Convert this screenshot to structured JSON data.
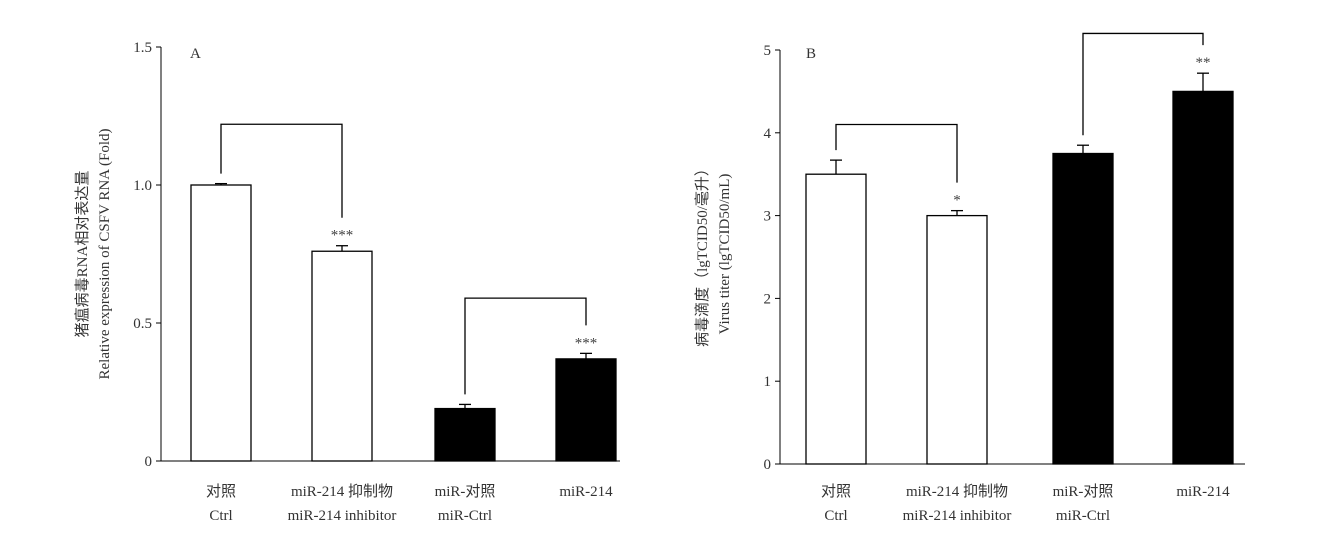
{
  "chart_data": [
    {
      "type": "bar",
      "panel_label": "A",
      "ylabel_cn": "猪瘟病毒RNA相对表达量",
      "ylabel_en": "Relative expression of CSFV RNA (Fold)",
      "ylim": [
        0,
        1.5
      ],
      "yticks": [
        0,
        0.5,
        1.0,
        1.5
      ],
      "ytick_labels": [
        "0",
        "0.5",
        "1.0",
        "1.5"
      ],
      "categories_cn": [
        "对照",
        "miR-214 抑制物",
        "miR-对照",
        "miR-214"
      ],
      "categories_en": [
        "Ctrl",
        "miR-214 inhibitor",
        "miR-Ctrl",
        ""
      ],
      "values": [
        1.0,
        0.76,
        0.19,
        0.37
      ],
      "errors": [
        0.005,
        0.02,
        0.015,
        0.02
      ],
      "fill": [
        "#ffffff",
        "#ffffff",
        "#000000",
        "#000000"
      ],
      "significance": [
        "",
        "***",
        "",
        "***"
      ],
      "comparisons": [
        {
          "from": 0,
          "to": 1,
          "level": 1.22
        },
        {
          "from": 2,
          "to": 3,
          "level": 0.59
        }
      ]
    },
    {
      "type": "bar",
      "panel_label": "B",
      "ylabel_cn": "病毒滴度（lgTCID50/毫升）",
      "ylabel_en": "Virus titer (lgTCID50/mL)",
      "ylim": [
        0,
        5
      ],
      "yticks": [
        0,
        1,
        2,
        3,
        4,
        5
      ],
      "ytick_labels": [
        "0",
        "1",
        "2",
        "3",
        "4",
        "5"
      ],
      "categories_cn": [
        "对照",
        "miR-214 抑制物",
        "miR-对照",
        "miR-214"
      ],
      "categories_en": [
        "Ctrl",
        "miR-214 inhibitor",
        "miR-Ctrl",
        ""
      ],
      "values": [
        3.5,
        3.0,
        3.75,
        4.5
      ],
      "errors": [
        0.17,
        0.06,
        0.1,
        0.22
      ],
      "fill": [
        "#ffffff",
        "#ffffff",
        "#000000",
        "#000000"
      ],
      "significance": [
        "",
        "*",
        "",
        "**"
      ],
      "comparisons": [
        {
          "from": 0,
          "to": 1,
          "level": 4.1
        },
        {
          "from": 2,
          "to": 3,
          "level": 5.2
        }
      ]
    }
  ]
}
